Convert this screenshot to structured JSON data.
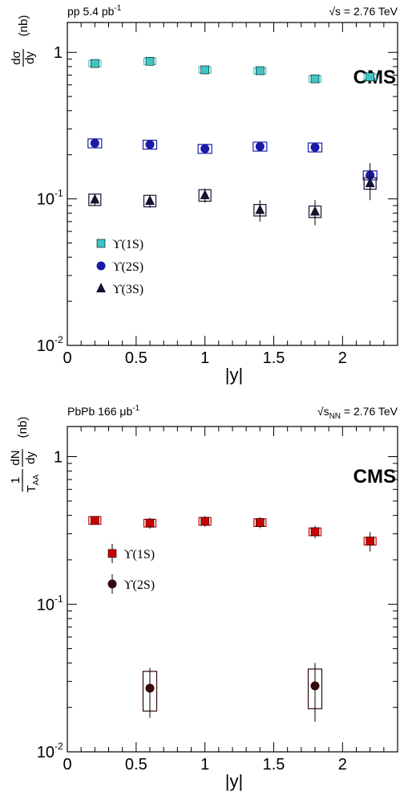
{
  "chart_data": [
    {
      "type": "scatter",
      "header_left": "pp 5.4 pb",
      "header_left_sup": "-1",
      "header_right": "√s = 2.76 TeV",
      "logo": "CMS",
      "ylabel_num": "dσ",
      "ylabel_den": "dy",
      "ylabel_unit": "(nb)",
      "xlabel": "|y|",
      "xlim": [
        0,
        2.4
      ],
      "ylim": [
        0.01,
        1.6
      ],
      "yscale": "log",
      "x_ticks": [
        "0",
        "0.5",
        "1",
        "1.5",
        "2"
      ],
      "y_ticks": [
        {
          "base": "1",
          "exp": ""
        },
        {
          "base": "10",
          "exp": "-1"
        },
        {
          "base": "10",
          "exp": "-2"
        }
      ],
      "legend_position": "lower-left",
      "series": [
        {
          "name": "ϒ(1S)",
          "marker": "square-filled",
          "color": "#3ec6c6",
          "x": [
            0.2,
            0.6,
            1.0,
            1.4,
            1.8,
            2.2
          ],
          "y": [
            0.84,
            0.87,
            0.76,
            0.75,
            0.66,
            0.68
          ],
          "err": [
            0.03,
            0.03,
            0.03,
            0.03,
            0.03,
            0.04
          ]
        },
        {
          "name": "ϒ(2S)",
          "marker": "circle-filled",
          "color": "#1a1aa6",
          "x": [
            0.2,
            0.6,
            1.0,
            1.4,
            1.8,
            2.2
          ],
          "y": [
            0.24,
            0.235,
            0.22,
            0.228,
            0.225,
            0.145
          ],
          "err": [
            0.012,
            0.012,
            0.014,
            0.014,
            0.016,
            0.03
          ]
        },
        {
          "name": "ϒ(3S)",
          "marker": "triangle-filled",
          "color": "#141432",
          "x": [
            0.2,
            0.6,
            1.0,
            1.4,
            1.8,
            2.2
          ],
          "y": [
            0.099,
            0.097,
            0.106,
            0.084,
            0.082,
            0.128
          ],
          "err": [
            0.009,
            0.01,
            0.012,
            0.014,
            0.016,
            0.03
          ]
        }
      ]
    },
    {
      "type": "scatter",
      "header_left": "PbPb 166 μb",
      "header_left_sup": "-1",
      "header_right": "√s",
      "header_right_sub": "NN",
      "header_right_tail": " = 2.76 TeV",
      "logo": "CMS",
      "ylabel_frac_num": "1",
      "ylabel_frac_den": "T",
      "ylabel_frac_den_sub": "AA",
      "ylabel_num": "dN",
      "ylabel_den": "dy",
      "ylabel_unit": "(nb)",
      "xlabel": "|y|",
      "xlim": [
        0,
        2.4
      ],
      "ylim": [
        0.01,
        1.6
      ],
      "yscale": "log",
      "x_ticks": [
        "0",
        "0.5",
        "1",
        "1.5",
        "2"
      ],
      "y_ticks": [
        {
          "base": "1",
          "exp": ""
        },
        {
          "base": "10",
          "exp": "-1"
        },
        {
          "base": "10",
          "exp": "-2"
        }
      ],
      "legend_position": "middle-left",
      "series": [
        {
          "name": "ϒ(1S)",
          "marker": "square-filled",
          "color": "#cc0000",
          "x": [
            0.2,
            0.6,
            1.0,
            1.4,
            1.8,
            2.2
          ],
          "y": [
            0.37,
            0.355,
            0.365,
            0.358,
            0.31,
            0.268
          ],
          "err": [
            0.02,
            0.03,
            0.03,
            0.03,
            0.03,
            0.04
          ]
        },
        {
          "name": "ϒ(2S)",
          "marker": "circle-filled",
          "color": "#330a0a",
          "x": [
            0.6,
            1.8
          ],
          "y": [
            0.027,
            0.028
          ],
          "err": [
            0.01,
            0.012
          ]
        }
      ]
    }
  ]
}
